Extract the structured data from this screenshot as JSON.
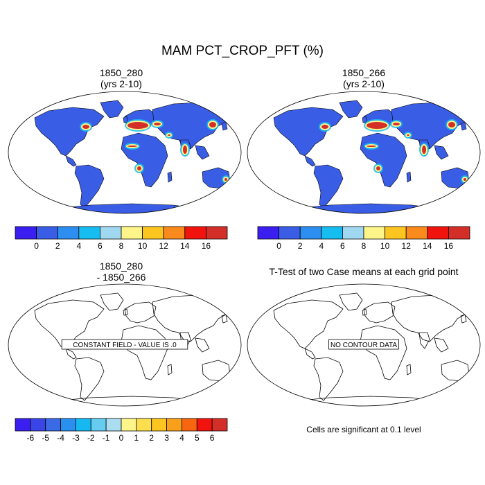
{
  "page_title": "MAM PCT_CROP_PFT (%)",
  "panels": [
    {
      "title_line1": "1850_280",
      "title_line2": "(yrs 2-10)",
      "kind": "filled-map"
    },
    {
      "title_line1": "1850_266",
      "title_line2": "(yrs 2-10)",
      "kind": "filled-map"
    },
    {
      "title_line1": "1850_280",
      "title_line2": "- 1850_266",
      "kind": "difference-map",
      "message": "CONSTANT FIELD - VALUE IS .0"
    },
    {
      "title_line1": "T-Test of two Case means at each grid point",
      "title_line2": "",
      "kind": "ttest-map",
      "message": "NO CONTOUR DATA",
      "footnote": "Cells are significant at 0.1 level"
    }
  ],
  "colorbars": {
    "top": {
      "labels": [
        "0",
        "2",
        "4",
        "6",
        "8",
        "10",
        "12",
        "14",
        "16"
      ],
      "colors": [
        "#3b1ff0",
        "#3a5de6",
        "#2c8ef0",
        "#15bdf0",
        "#9fd8f0",
        "#fdf58a",
        "#fdc51f",
        "#f98a1b",
        "#f0130e",
        "#d32f28"
      ]
    },
    "diff": {
      "labels": [
        "-6",
        "-5",
        "-4",
        "-3",
        "-2",
        "-1",
        "0",
        "1",
        "2",
        "3",
        "4",
        "5",
        "6"
      ],
      "colors": [
        "#3b1ff0",
        "#3a45e8",
        "#3a6ae6",
        "#2a90f0",
        "#15b8f0",
        "#66ccf0",
        "#abddf0",
        "#fdf58a",
        "#fdde4e",
        "#fdc51f",
        "#f9a01b",
        "#f7650f",
        "#f0130e",
        "#d32f28"
      ]
    }
  },
  "colors": {
    "ocean": "#ffffff",
    "land_base": "#3a5de6",
    "crop_high": "#d32f28"
  }
}
